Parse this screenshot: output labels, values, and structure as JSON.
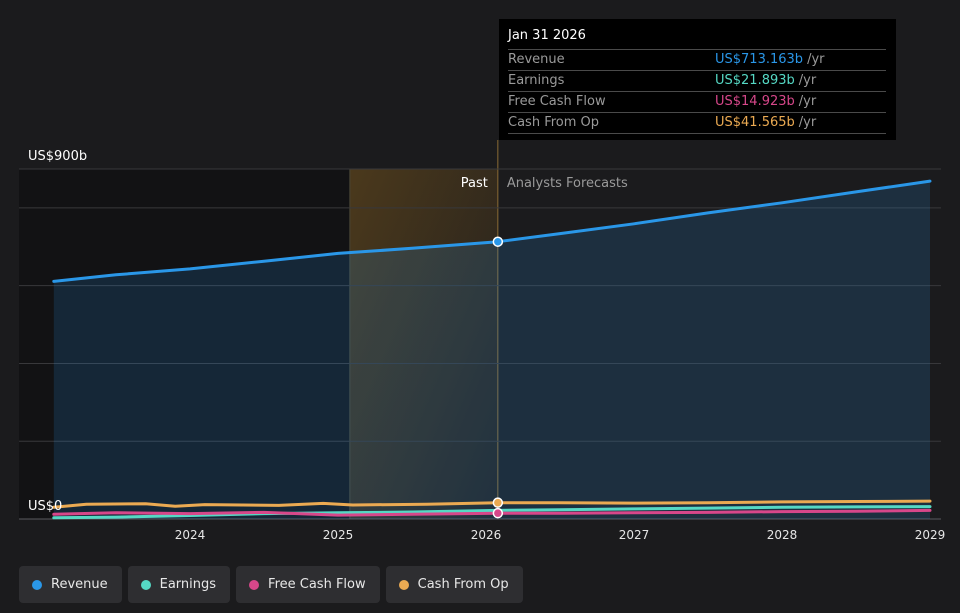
{
  "tooltip": {
    "date": "Jan 31 2026",
    "unit": "/yr",
    "rows": [
      {
        "label": "Revenue",
        "value": "US$713.163b",
        "color": "#2a97e8"
      },
      {
        "label": "Earnings",
        "value": "US$21.893b",
        "color": "#55d8c4"
      },
      {
        "label": "Free Cash Flow",
        "value": "US$14.923b",
        "color": "#d7478a"
      },
      {
        "label": "Cash From Op",
        "value": "US$41.565b",
        "color": "#ebaa52"
      }
    ]
  },
  "legend": [
    {
      "label": "Revenue",
      "color": "#2a97e8"
    },
    {
      "label": "Earnings",
      "color": "#55d8c4"
    },
    {
      "label": "Free Cash Flow",
      "color": "#d7478a"
    },
    {
      "label": "Cash From Op",
      "color": "#ebaa52"
    }
  ],
  "chart_data": {
    "type": "area",
    "y_top_label": "US$900b",
    "y_bottom_label": "US$0",
    "ylim": [
      0,
      900
    ],
    "xlim": [
      2023.1,
      2029.0
    ],
    "x_ticks": [
      {
        "label": "2024",
        "value": 2024
      },
      {
        "label": "2025",
        "value": 2025
      },
      {
        "label": "2026",
        "value": 2026
      },
      {
        "label": "2027",
        "value": 2027
      },
      {
        "label": "2028",
        "value": 2028
      },
      {
        "label": "2029",
        "value": 2029
      }
    ],
    "past_label": "Past",
    "forecast_label": "Analysts Forecasts",
    "past_end": 2026.08,
    "highlight_start": 2025.08,
    "series": [
      {
        "name": "Revenue",
        "color": "#2a97e8",
        "points": [
          [
            2023.08,
            611
          ],
          [
            2023.5,
            628
          ],
          [
            2024.0,
            643
          ],
          [
            2024.5,
            663
          ],
          [
            2025.0,
            683
          ],
          [
            2025.5,
            696
          ],
          [
            2026.08,
            713
          ],
          [
            2026.5,
            734
          ],
          [
            2027.0,
            759
          ],
          [
            2027.5,
            787
          ],
          [
            2028.0,
            813
          ],
          [
            2028.5,
            841
          ],
          [
            2029.0,
            869
          ]
        ]
      },
      {
        "name": "Earnings",
        "color": "#55d8c4",
        "points": [
          [
            2023.08,
            3
          ],
          [
            2023.5,
            5
          ],
          [
            2024.0,
            9
          ],
          [
            2024.5,
            14
          ],
          [
            2025.0,
            16
          ],
          [
            2025.5,
            18
          ],
          [
            2026.08,
            22
          ],
          [
            2026.5,
            24
          ],
          [
            2027.0,
            26
          ],
          [
            2027.5,
            28
          ],
          [
            2028.0,
            30
          ],
          [
            2028.5,
            31
          ],
          [
            2029.0,
            32
          ]
        ]
      },
      {
        "name": "Free Cash Flow",
        "color": "#d7478a",
        "points": [
          [
            2023.08,
            12
          ],
          [
            2023.5,
            16
          ],
          [
            2024.0,
            14
          ],
          [
            2024.5,
            17
          ],
          [
            2025.0,
            10
          ],
          [
            2025.5,
            12
          ],
          [
            2026.08,
            15
          ],
          [
            2026.5,
            15
          ],
          [
            2027.0,
            16
          ],
          [
            2027.5,
            17
          ],
          [
            2028.0,
            19
          ],
          [
            2028.5,
            20
          ],
          [
            2029.0,
            22
          ]
        ]
      },
      {
        "name": "Cash From Op",
        "color": "#ebaa52",
        "points": [
          [
            2023.08,
            30
          ],
          [
            2023.3,
            38
          ],
          [
            2023.7,
            39
          ],
          [
            2023.9,
            33
          ],
          [
            2024.1,
            37
          ],
          [
            2024.6,
            35
          ],
          [
            2024.9,
            40
          ],
          [
            2025.1,
            36
          ],
          [
            2025.6,
            38
          ],
          [
            2026.08,
            42
          ],
          [
            2026.5,
            42
          ],
          [
            2027.0,
            41
          ],
          [
            2027.5,
            42
          ],
          [
            2028.0,
            44
          ],
          [
            2028.5,
            45
          ],
          [
            2029.0,
            46
          ]
        ]
      }
    ]
  }
}
